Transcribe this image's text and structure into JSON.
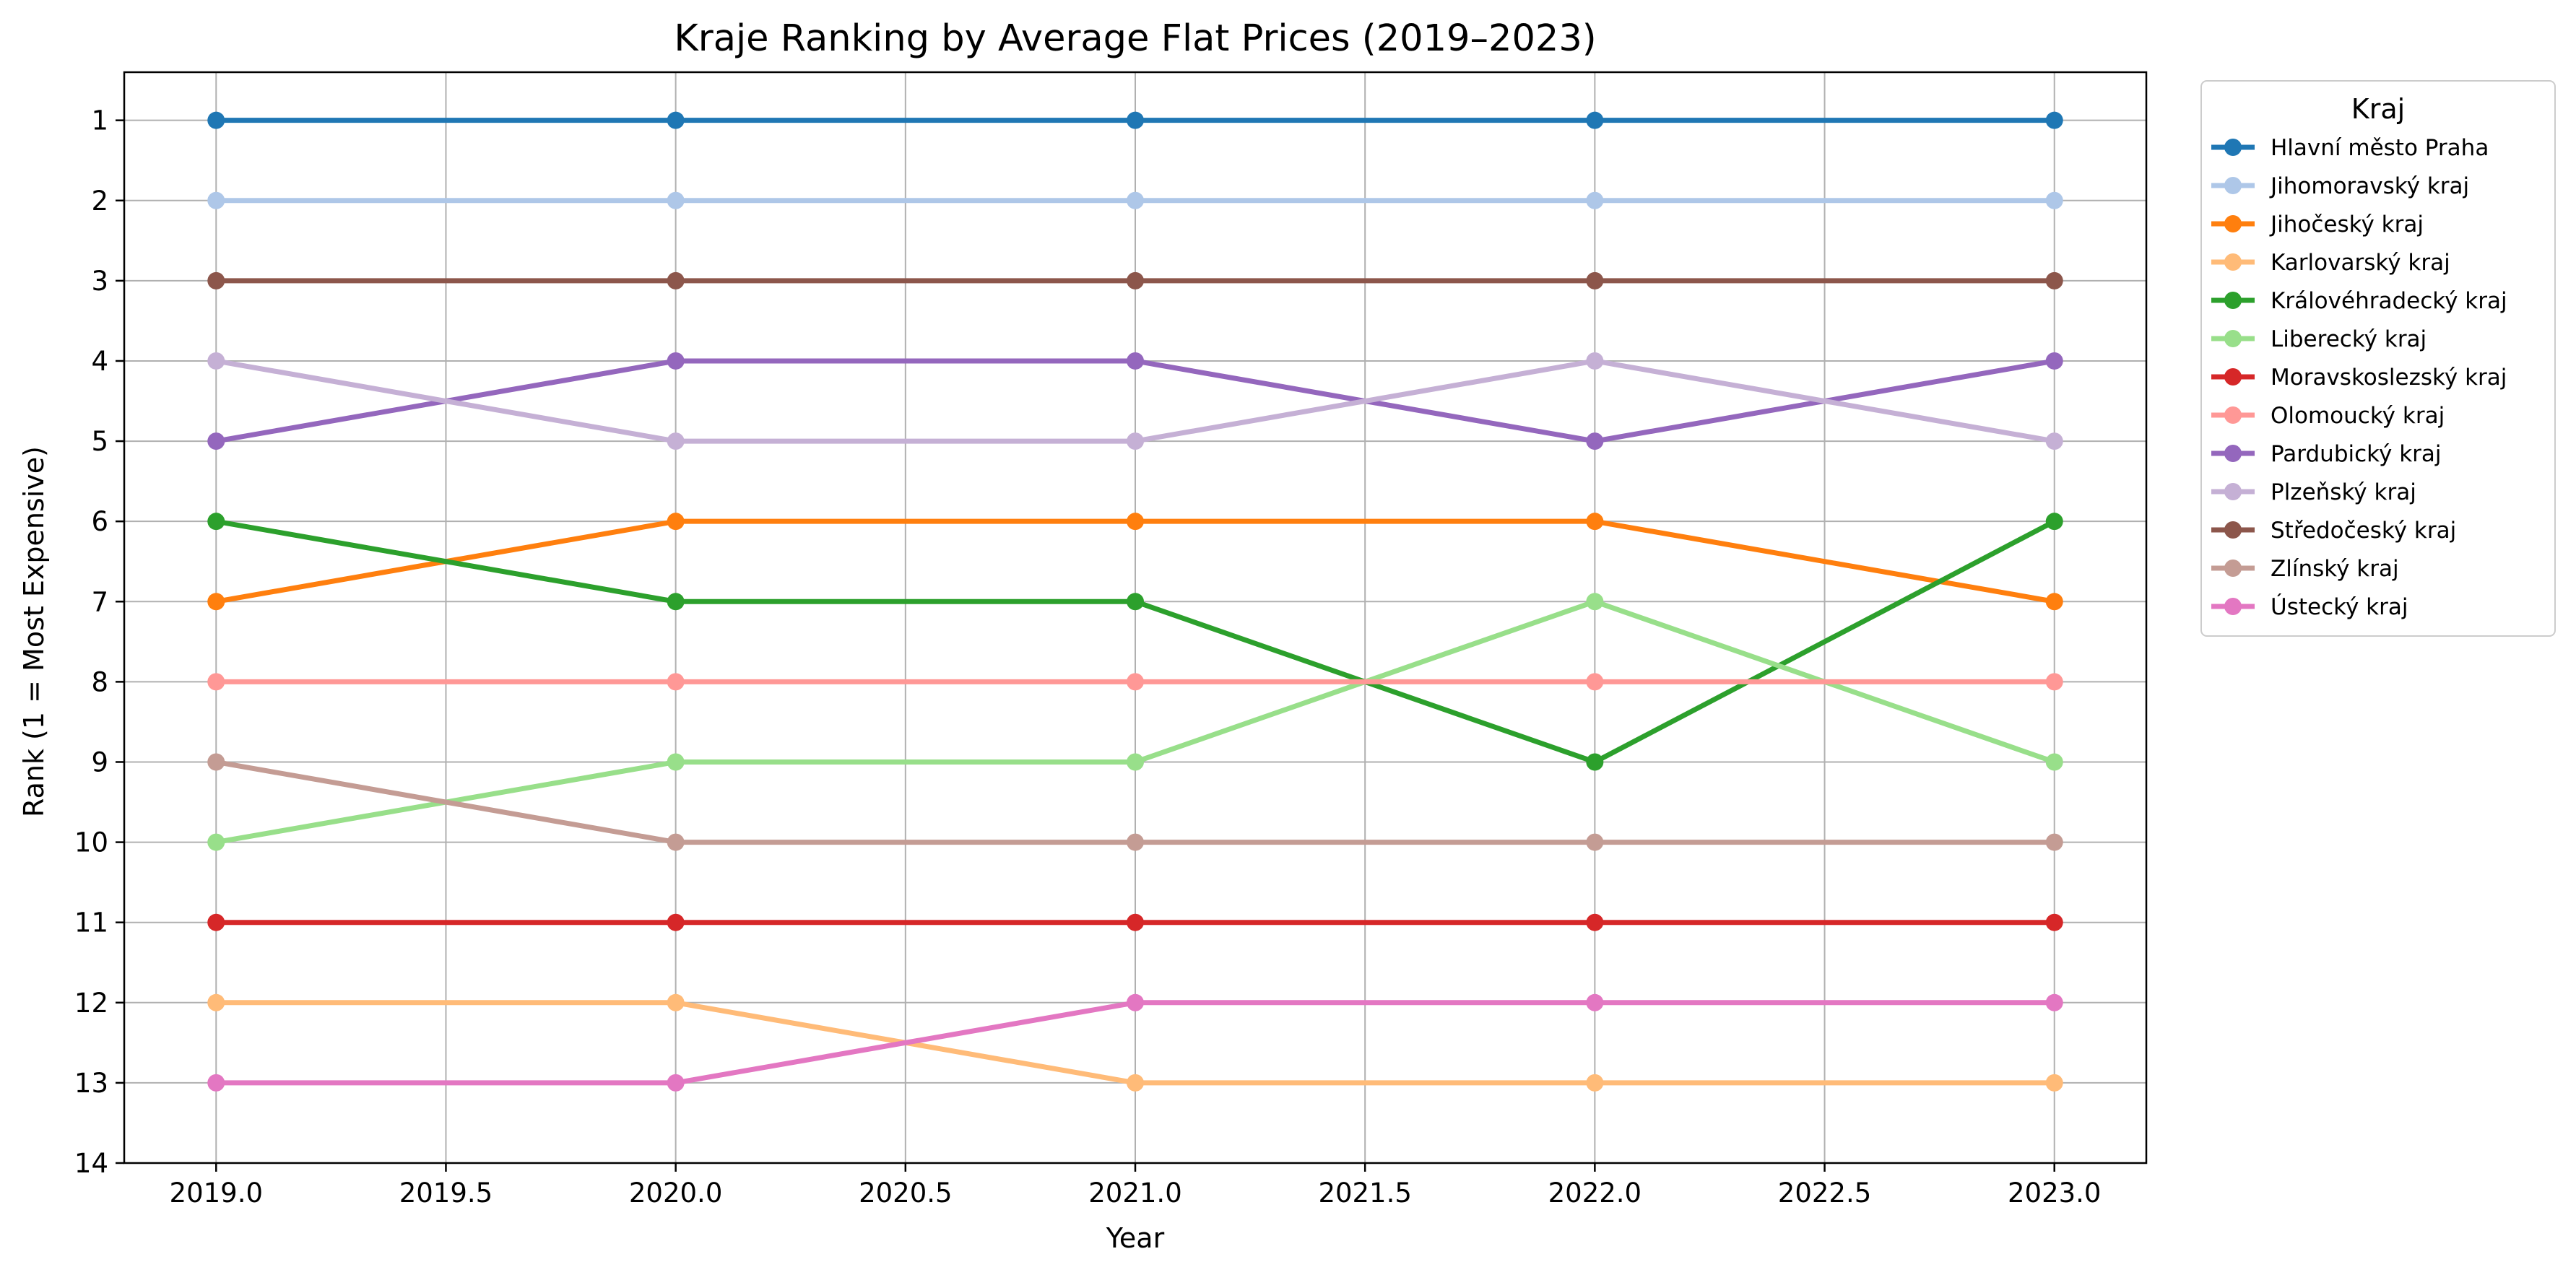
{
  "chart_data": {
    "type": "line",
    "title": "Kraje Ranking by Average Flat Prices (2019–2023)",
    "xlabel": "Year",
    "ylabel": "Rank (1 = Most Expensive)",
    "xlim": [
      2018.8,
      2023.2
    ],
    "ylim": [
      14,
      0.4
    ],
    "y_inverted": true,
    "x_ticks": [
      2019.0,
      2019.5,
      2020.0,
      2020.5,
      2021.0,
      2021.5,
      2022.0,
      2022.5,
      2023.0
    ],
    "x_tick_labels": [
      "2019.0",
      "2019.5",
      "2020.0",
      "2020.5",
      "2021.0",
      "2021.5",
      "2022.0",
      "2022.5",
      "2023.0"
    ],
    "y_ticks": [
      1,
      2,
      3,
      4,
      5,
      6,
      7,
      8,
      9,
      10,
      11,
      12,
      13,
      14
    ],
    "y_tick_labels": [
      "1",
      "2",
      "3",
      "4",
      "5",
      "6",
      "7",
      "8",
      "9",
      "10",
      "11",
      "12",
      "13",
      "14"
    ],
    "grid": true,
    "legend": {
      "title": "Kraj",
      "placement": "outside-top-right"
    },
    "x": [
      2019,
      2020,
      2021,
      2022,
      2023
    ],
    "series": [
      {
        "name": "Hlavní město Praha",
        "color": "#1f77b4",
        "values": [
          1,
          1,
          1,
          1,
          1
        ]
      },
      {
        "name": "Jihomoravský kraj",
        "color": "#aec7e8",
        "values": [
          2,
          2,
          2,
          2,
          2
        ]
      },
      {
        "name": "Jihočeský kraj",
        "color": "#ff7f0e",
        "values": [
          7,
          6,
          6,
          6,
          7
        ]
      },
      {
        "name": "Karlovarský kraj",
        "color": "#ffbb78",
        "values": [
          12,
          12,
          13,
          13,
          13
        ]
      },
      {
        "name": "Královéhradecký kraj",
        "color": "#2ca02c",
        "values": [
          6,
          7,
          7,
          9,
          6
        ]
      },
      {
        "name": "Liberecký kraj",
        "color": "#98df8a",
        "values": [
          10,
          9,
          9,
          7,
          9
        ]
      },
      {
        "name": "Moravskoslezský kraj",
        "color": "#d62728",
        "values": [
          11,
          11,
          11,
          11,
          11
        ]
      },
      {
        "name": "Olomoucký kraj",
        "color": "#ff9896",
        "values": [
          8,
          8,
          8,
          8,
          8
        ]
      },
      {
        "name": "Pardubický kraj",
        "color": "#9467bd",
        "values": [
          5,
          4,
          4,
          5,
          4
        ]
      },
      {
        "name": "Plzeňský kraj",
        "color": "#c5b0d5",
        "values": [
          4,
          5,
          5,
          4,
          5
        ]
      },
      {
        "name": "Středočeský kraj",
        "color": "#8c564b",
        "values": [
          3,
          3,
          3,
          3,
          3
        ]
      },
      {
        "name": "Zlínský kraj",
        "color": "#c49c94",
        "values": [
          9,
          10,
          10,
          10,
          10
        ]
      },
      {
        "name": "Ústecký kraj",
        "color": "#e377c2",
        "values": [
          13,
          13,
          12,
          12,
          12
        ]
      }
    ]
  }
}
